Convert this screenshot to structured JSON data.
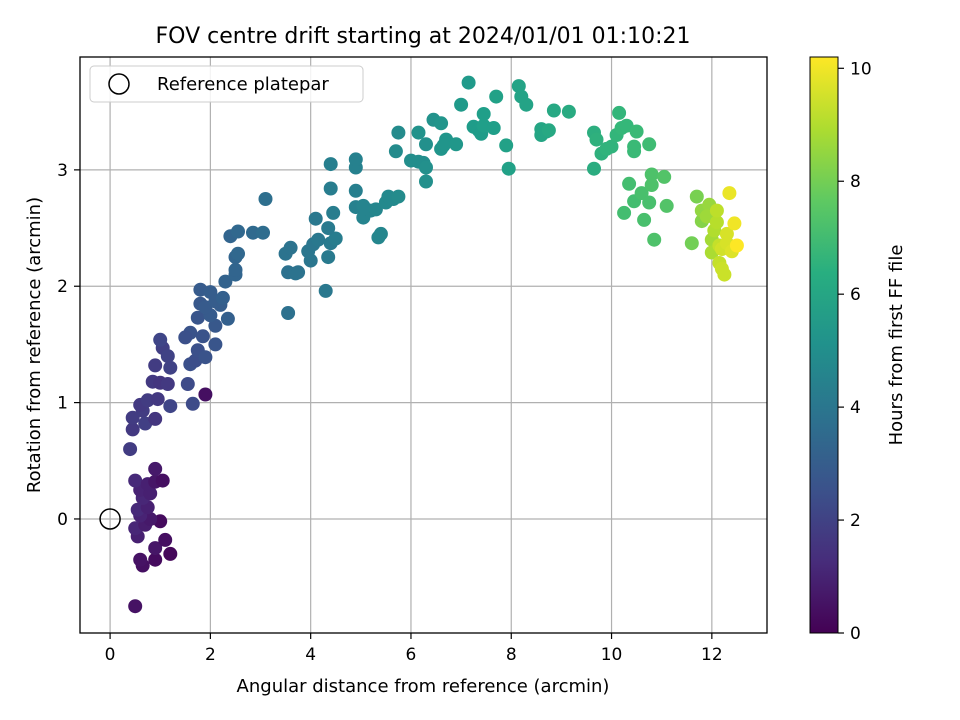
{
  "chart_data": {
    "type": "scatter",
    "title": "FOV centre drift starting at 2024/01/01 01:10:21",
    "xlabel": "Angular distance from reference (arcmin)",
    "ylabel": "Rotation from reference (arcmin)",
    "xlim": [
      -0.6,
      13.1
    ],
    "ylim": [
      -0.98,
      3.97
    ],
    "xticks": [
      0,
      2,
      4,
      6,
      8,
      10,
      12
    ],
    "yticks": [
      0,
      1,
      2,
      3
    ],
    "grid": true,
    "legend": {
      "location": "upper left",
      "entries": [
        "Reference platepar"
      ]
    },
    "reference": {
      "x": 0,
      "y": 0
    },
    "colorbar": {
      "label": "Hours from first FF file",
      "colormap": "viridis",
      "range": [
        0,
        10.2
      ],
      "ticks": [
        0,
        2,
        4,
        6,
        8,
        10
      ]
    },
    "points": [
      [
        0.5,
        -0.75,
        0.5
      ],
      [
        0.65,
        -0.4,
        0.4
      ],
      [
        0.6,
        -0.35,
        0.5
      ],
      [
        0.9,
        -0.35,
        0.3
      ],
      [
        1.2,
        -0.3,
        0.2
      ],
      [
        0.9,
        -0.25,
        0.6
      ],
      [
        1.1,
        -0.18,
        0.4
      ],
      [
        0.55,
        -0.15,
        0.9
      ],
      [
        0.5,
        -0.08,
        1.1
      ],
      [
        0.7,
        -0.05,
        0.8
      ],
      [
        1.0,
        -0.02,
        0.3
      ],
      [
        0.8,
        0.0,
        0.7
      ],
      [
        0.6,
        0.03,
        1.0
      ],
      [
        0.55,
        0.08,
        1.2
      ],
      [
        0.75,
        0.1,
        0.9
      ],
      [
        0.65,
        0.18,
        1.1
      ],
      [
        0.6,
        0.25,
        1.0
      ],
      [
        0.8,
        0.22,
        0.9
      ],
      [
        0.5,
        0.33,
        1.2
      ],
      [
        0.75,
        0.3,
        0.9
      ],
      [
        0.9,
        0.32,
        0.6
      ],
      [
        1.05,
        0.33,
        0.4
      ],
      [
        0.9,
        0.43,
        0.7
      ],
      [
        0.4,
        0.6,
        1.8
      ],
      [
        0.45,
        0.77,
        1.7
      ],
      [
        0.45,
        0.87,
        1.8
      ],
      [
        0.7,
        0.82,
        1.9
      ],
      [
        0.65,
        0.93,
        1.8
      ],
      [
        0.6,
        0.98,
        1.7
      ],
      [
        0.75,
        1.02,
        1.8
      ],
      [
        0.9,
        0.86,
        1.6
      ],
      [
        0.95,
        1.03,
        1.7
      ],
      [
        0.85,
        1.18,
        1.7
      ],
      [
        1.0,
        1.17,
        1.6
      ],
      [
        1.15,
        1.16,
        1.7
      ],
      [
        0.9,
        1.32,
        1.8
      ],
      [
        1.05,
        1.47,
        1.9
      ],
      [
        1.15,
        1.4,
        2.0
      ],
      [
        1.0,
        1.54,
        2.1
      ],
      [
        1.2,
        1.3,
        2.0
      ],
      [
        1.2,
        0.97,
        2.1
      ],
      [
        1.9,
        1.07,
        0.4
      ],
      [
        1.65,
        0.99,
        2.3
      ],
      [
        1.55,
        1.16,
        2.3
      ],
      [
        1.6,
        1.33,
        2.5
      ],
      [
        1.7,
        1.36,
        2.4
      ],
      [
        1.75,
        1.45,
        2.5
      ],
      [
        1.9,
        1.39,
        2.6
      ],
      [
        2.1,
        1.5,
        2.7
      ],
      [
        1.6,
        1.6,
        2.6
      ],
      [
        1.5,
        1.56,
        2.5
      ],
      [
        1.85,
        1.57,
        2.6
      ],
      [
        1.75,
        1.73,
        2.7
      ],
      [
        2.1,
        1.66,
        2.8
      ],
      [
        2.0,
        1.75,
        2.9
      ],
      [
        1.8,
        1.85,
        2.8
      ],
      [
        1.9,
        1.82,
        2.9
      ],
      [
        2.2,
        1.84,
        3.0
      ],
      [
        1.8,
        1.97,
        2.9
      ],
      [
        2.0,
        1.95,
        3.0
      ],
      [
        2.1,
        1.87,
        3.0
      ],
      [
        2.25,
        1.9,
        3.1
      ],
      [
        2.35,
        1.72,
        3.1
      ],
      [
        2.3,
        2.04,
        3.2
      ],
      [
        2.5,
        2.1,
        3.3
      ],
      [
        2.5,
        2.14,
        3.3
      ],
      [
        2.5,
        2.25,
        3.3
      ],
      [
        2.55,
        2.28,
        3.4
      ],
      [
        2.4,
        2.43,
        3.3
      ],
      [
        2.55,
        2.47,
        3.4
      ],
      [
        2.85,
        2.46,
        3.5
      ],
      [
        3.05,
        2.46,
        3.6
      ],
      [
        3.1,
        2.75,
        3.7
      ],
      [
        3.55,
        1.77,
        3.8
      ],
      [
        3.55,
        2.12,
        3.8
      ],
      [
        3.7,
        2.11,
        3.9
      ],
      [
        3.75,
        2.12,
        3.9
      ],
      [
        3.5,
        2.28,
        3.9
      ],
      [
        3.6,
        2.33,
        3.9
      ],
      [
        3.95,
        2.3,
        4.0
      ],
      [
        4.0,
        2.22,
        4.0
      ],
      [
        4.05,
        2.36,
        4.0
      ],
      [
        4.15,
        2.4,
        4.1
      ],
      [
        4.1,
        2.58,
        4.1
      ],
      [
        4.3,
        1.96,
        4.1
      ],
      [
        4.35,
        2.25,
        4.2
      ],
      [
        4.4,
        2.37,
        4.2
      ],
      [
        4.5,
        2.41,
        4.3
      ],
      [
        4.35,
        2.5,
        4.2
      ],
      [
        4.45,
        2.63,
        4.3
      ],
      [
        4.4,
        2.84,
        4.3
      ],
      [
        4.4,
        3.05,
        4.4
      ],
      [
        4.9,
        2.82,
        4.4
      ],
      [
        4.9,
        3.02,
        4.5
      ],
      [
        4.9,
        3.09,
        4.5
      ],
      [
        4.9,
        2.68,
        4.5
      ],
      [
        5.05,
        2.59,
        4.6
      ],
      [
        5.05,
        2.69,
        4.6
      ],
      [
        5.2,
        2.65,
        4.6
      ],
      [
        5.3,
        2.66,
        4.7
      ],
      [
        5.4,
        2.45,
        4.7
      ],
      [
        5.35,
        2.42,
        4.7
      ],
      [
        5.5,
        2.72,
        4.8
      ],
      [
        5.55,
        2.77,
        4.8
      ],
      [
        5.65,
        2.75,
        4.8
      ],
      [
        5.75,
        2.77,
        4.9
      ],
      [
        5.7,
        3.16,
        4.9
      ],
      [
        5.75,
        3.32,
        4.9
      ],
      [
        6.0,
        3.08,
        5.0
      ],
      [
        6.15,
        3.07,
        5.0
      ],
      [
        6.25,
        3.06,
        5.0
      ],
      [
        6.3,
        2.9,
        5.1
      ],
      [
        6.3,
        3.02,
        5.1
      ],
      [
        6.3,
        3.22,
        5.1
      ],
      [
        6.15,
        3.32,
        5.2
      ],
      [
        6.45,
        3.43,
        5.2
      ],
      [
        6.6,
        3.4,
        5.3
      ],
      [
        6.6,
        3.18,
        5.3
      ],
      [
        6.7,
        3.26,
        5.3
      ],
      [
        6.65,
        3.21,
        5.3
      ],
      [
        6.9,
        3.22,
        5.4
      ],
      [
        7.0,
        3.56,
        5.5
      ],
      [
        7.15,
        3.75,
        5.5
      ],
      [
        7.25,
        3.37,
        5.6
      ],
      [
        7.35,
        3.34,
        5.6
      ],
      [
        7.4,
        3.31,
        5.6
      ],
      [
        7.45,
        3.38,
        5.7
      ],
      [
        7.45,
        3.48,
        5.7
      ],
      [
        7.65,
        3.36,
        5.7
      ],
      [
        7.7,
        3.63,
        5.8
      ],
      [
        7.9,
        3.21,
        5.8
      ],
      [
        7.95,
        3.01,
        5.8
      ],
      [
        8.15,
        3.72,
        5.9
      ],
      [
        8.2,
        3.63,
        5.9
      ],
      [
        8.3,
        3.56,
        5.9
      ],
      [
        8.6,
        3.3,
        6.0
      ],
      [
        8.6,
        3.35,
        6.0
      ],
      [
        8.7,
        3.33,
        6.0
      ],
      [
        8.75,
        3.34,
        6.1
      ],
      [
        8.85,
        3.51,
        6.1
      ],
      [
        9.15,
        3.5,
        6.2
      ],
      [
        9.65,
        3.01,
        6.3
      ],
      [
        9.65,
        3.32,
        6.4
      ],
      [
        9.7,
        3.26,
        6.5
      ],
      [
        9.8,
        3.14,
        6.5
      ],
      [
        9.9,
        3.18,
        6.6
      ],
      [
        10.0,
        3.2,
        6.6
      ],
      [
        10.1,
        3.3,
        6.7
      ],
      [
        10.15,
        3.49,
        6.7
      ],
      [
        10.2,
        3.36,
        6.8
      ],
      [
        10.3,
        3.38,
        6.8
      ],
      [
        10.5,
        3.33,
        6.9
      ],
      [
        10.45,
        3.2,
        6.9
      ],
      [
        10.45,
        3.16,
        6.9
      ],
      [
        10.75,
        3.22,
        7.0
      ],
      [
        10.25,
        2.63,
        7.1
      ],
      [
        10.35,
        2.88,
        7.1
      ],
      [
        10.45,
        2.73,
        7.1
      ],
      [
        10.6,
        2.8,
        7.2
      ],
      [
        10.65,
        2.57,
        7.2
      ],
      [
        10.75,
        2.72,
        7.2
      ],
      [
        10.8,
        2.87,
        7.3
      ],
      [
        10.8,
        2.96,
        7.3
      ],
      [
        10.85,
        2.4,
        7.3
      ],
      [
        11.1,
        2.69,
        7.4
      ],
      [
        11.05,
        2.94,
        7.4
      ],
      [
        11.6,
        2.37,
        8.0
      ],
      [
        11.7,
        2.77,
        8.1
      ],
      [
        11.8,
        2.56,
        8.3
      ],
      [
        11.8,
        2.65,
        8.5
      ],
      [
        11.95,
        2.7,
        8.6
      ],
      [
        11.9,
        2.6,
        8.7
      ],
      [
        12.0,
        2.4,
        8.8
      ],
      [
        12.0,
        2.29,
        8.9
      ],
      [
        12.05,
        2.48,
        9.0
      ],
      [
        12.1,
        2.55,
        9.1
      ],
      [
        12.1,
        2.65,
        9.2
      ],
      [
        12.15,
        2.35,
        9.3
      ],
      [
        12.15,
        2.2,
        9.3
      ],
      [
        12.2,
        2.15,
        9.4
      ],
      [
        12.25,
        2.1,
        9.4
      ],
      [
        12.2,
        2.32,
        9.5
      ],
      [
        12.3,
        2.45,
        9.6
      ],
      [
        12.3,
        2.37,
        9.6
      ],
      [
        12.4,
        2.3,
        9.7
      ],
      [
        12.35,
        2.8,
        9.9
      ],
      [
        12.45,
        2.54,
        10.0
      ],
      [
        12.5,
        2.35,
        10.2
      ]
    ]
  }
}
